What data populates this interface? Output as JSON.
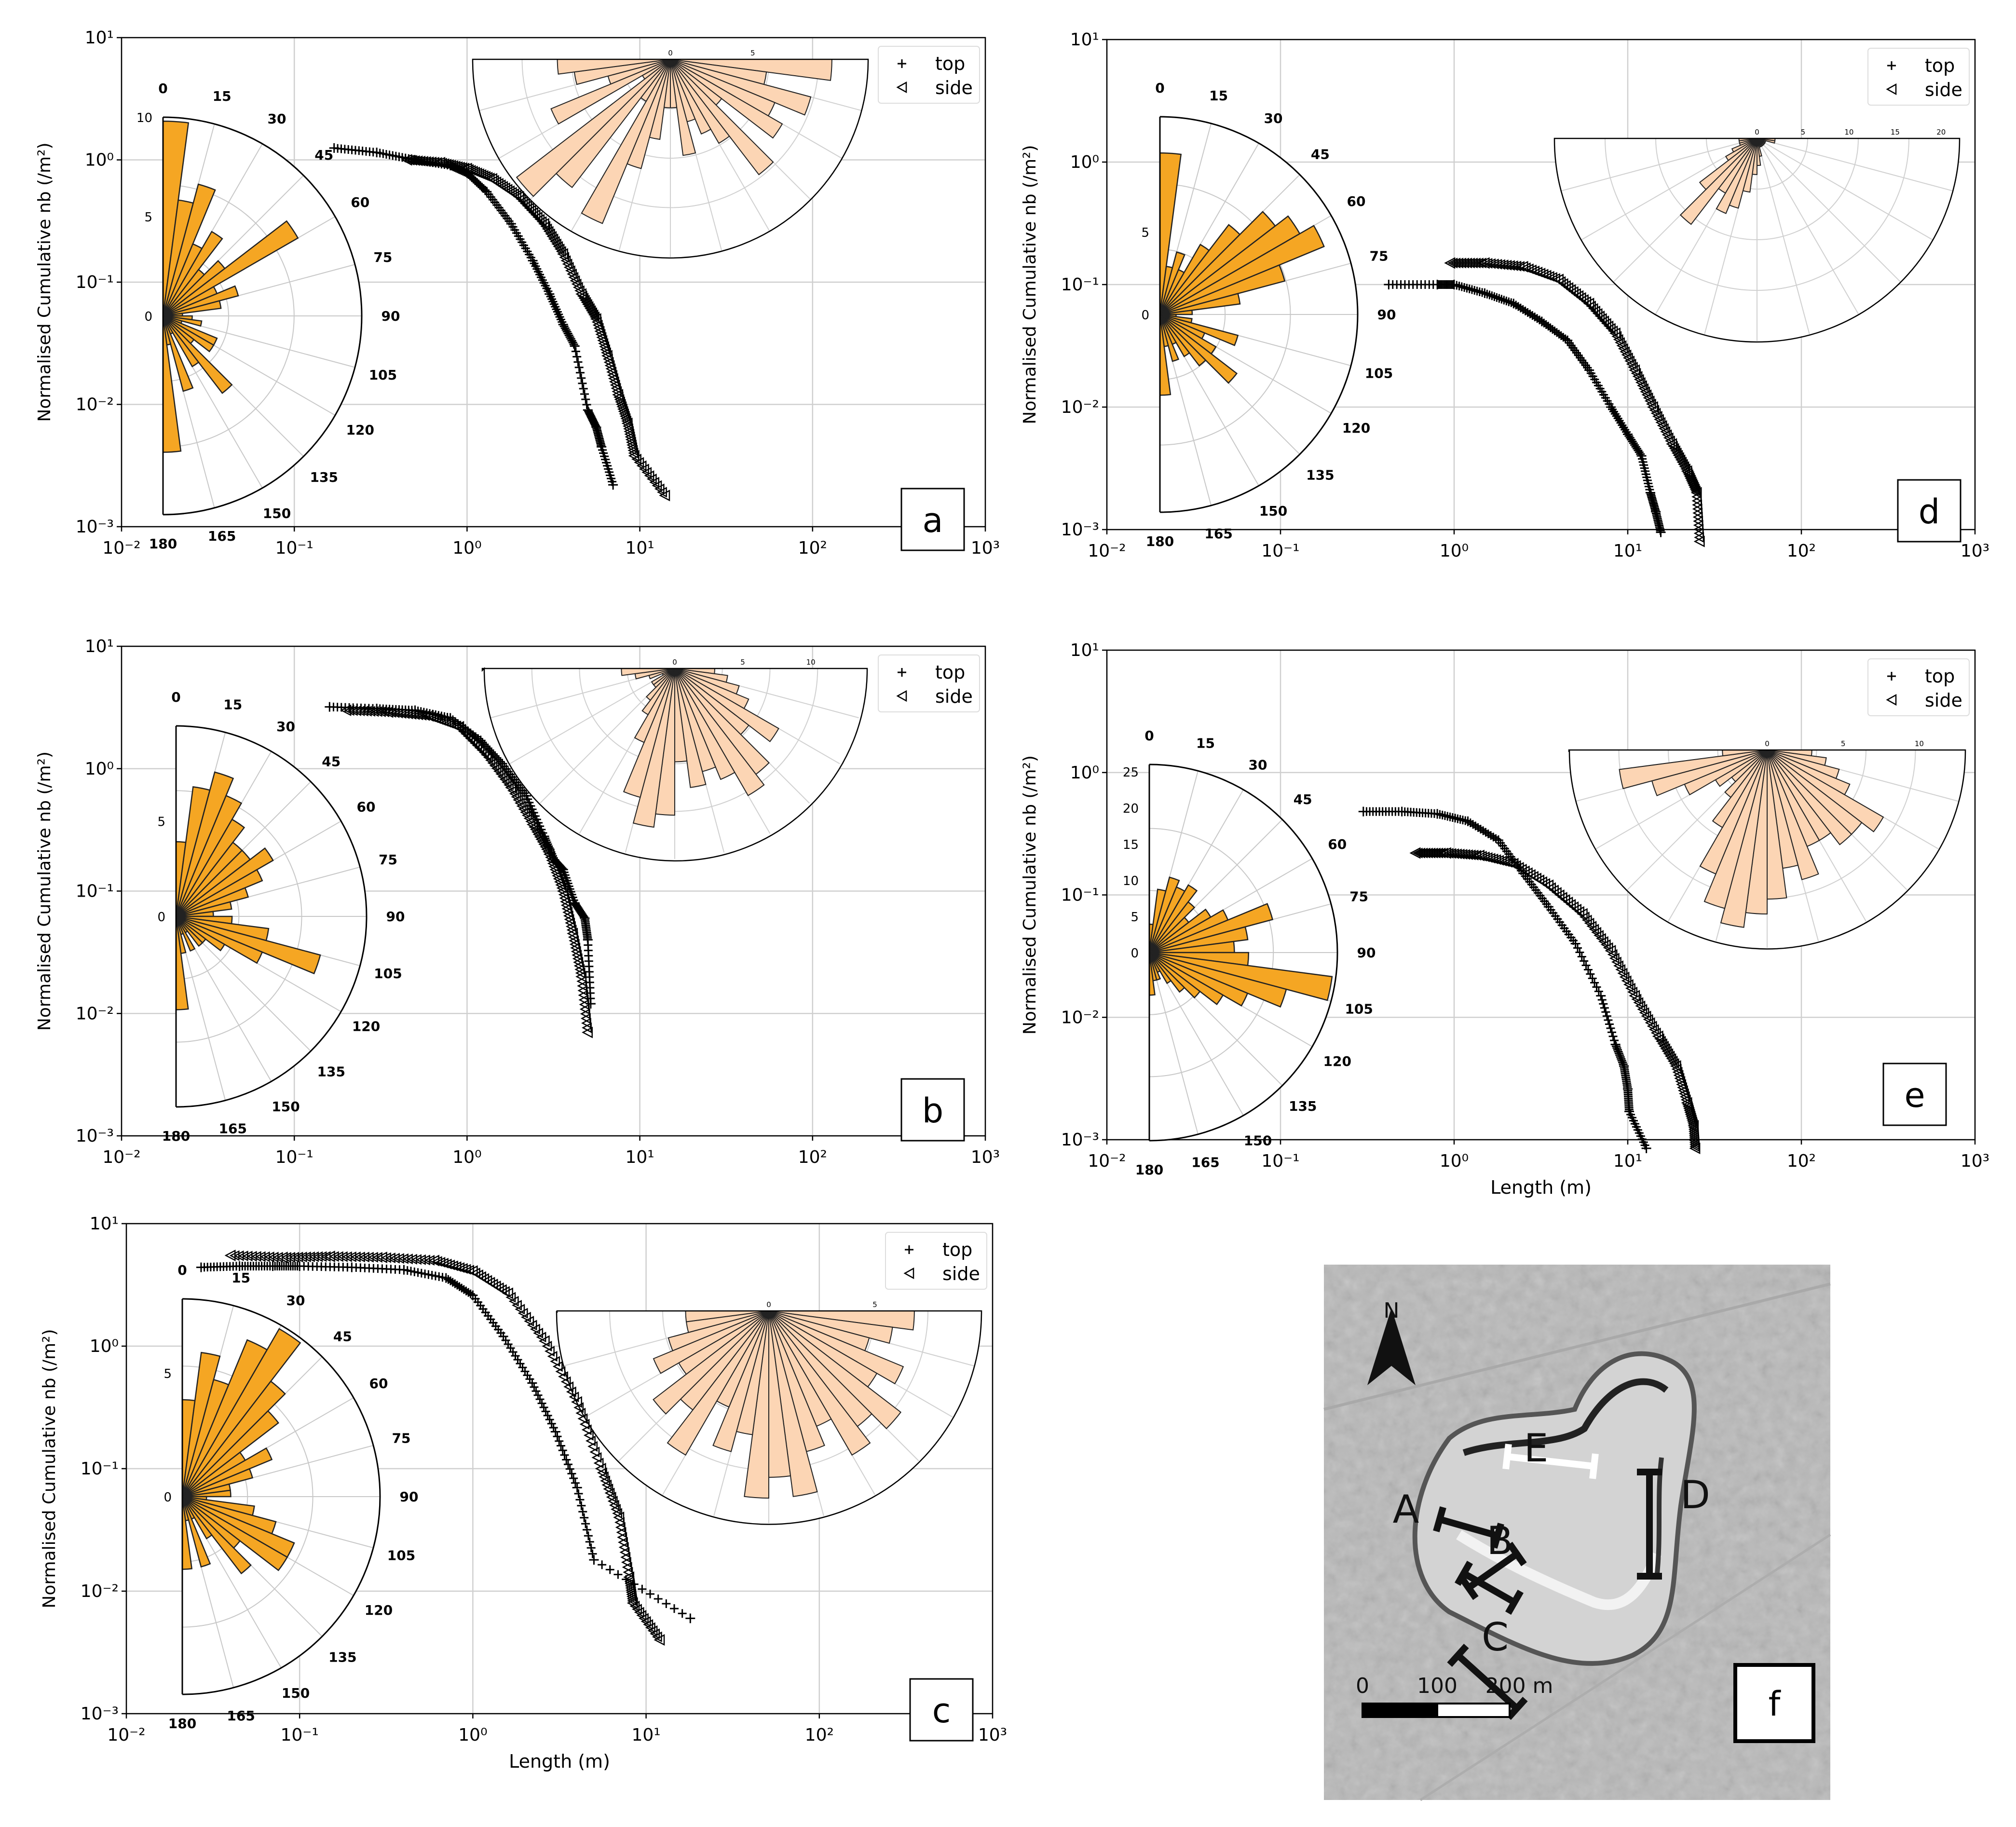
{
  "chart_data": [
    {
      "type": "scatter",
      "label": "a",
      "xlabel": "",
      "ylabel": "Normalised Cumulative nb (/m²)",
      "xscale": "log",
      "yscale": "log",
      "xlim": [
        0.01,
        1000
      ],
      "ylim": [
        0.001,
        10
      ],
      "xticks": [
        "10⁻²",
        "10⁻¹",
        "10⁰",
        "10¹",
        "10²",
        "10³"
      ],
      "yticks": [
        "10⁻³",
        "10⁻²",
        "10⁻¹",
        "10⁰",
        "10¹"
      ],
      "grid": true,
      "legend": "top-right",
      "series": [
        {
          "name": "top",
          "marker": "+",
          "x": [
            0.17,
            0.3,
            0.5,
            0.8,
            1.0,
            1.3,
            1.8,
            2.4,
            3.0,
            3.6,
            4.2,
            5.0,
            5.6,
            6.0,
            7.0
          ],
          "y": [
            1.25,
            1.15,
            1.0,
            0.9,
            0.78,
            0.55,
            0.3,
            0.15,
            0.08,
            0.045,
            0.03,
            0.009,
            0.0065,
            0.0045,
            0.0022
          ]
        },
        {
          "name": "side",
          "marker": "◁",
          "x": [
            0.45,
            0.7,
            1.0,
            1.4,
            2.0,
            2.8,
            3.6,
            4.6,
            5.6,
            6.5,
            7.5,
            8.5,
            9.3,
            14.0
          ],
          "y": [
            1.0,
            0.95,
            0.85,
            0.7,
            0.5,
            0.3,
            0.17,
            0.08,
            0.05,
            0.025,
            0.012,
            0.007,
            0.0038,
            0.0018
          ]
        }
      ],
      "inset_rose_left": {
        "angles": [
          "0",
          "15",
          "30",
          "45",
          "60",
          "75",
          "90",
          "105",
          "120",
          "135",
          "150",
          "165",
          "180"
        ],
        "radial_ticks": [
          "0",
          "5",
          "10"
        ],
        "rmax": 10,
        "bins_deg": [
          0,
          7.5,
          15,
          22.5,
          30,
          37.5,
          45,
          52.5,
          60,
          67.5,
          75,
          82.5,
          90,
          97.5,
          105,
          112.5,
          120,
          127.5,
          135,
          142.5,
          150,
          157.5,
          165,
          172.5
        ],
        "counts": [
          10,
          6,
          7,
          4,
          5,
          3,
          4,
          8,
          3,
          4,
          3,
          1,
          1.5,
          2,
          1,
          3,
          3,
          2,
          5,
          3,
          1,
          4,
          1.5,
          7
        ]
      },
      "inset_rose_top": {
        "radial_ticks": [
          "0",
          "5"
        ],
        "rmax": 12,
        "counts": [
          10,
          6,
          9,
          7,
          8,
          4,
          9,
          6,
          5,
          4,
          6,
          3,
          3,
          5,
          7,
          11,
          3,
          10,
          12,
          2,
          8,
          4,
          6,
          7
        ]
      }
    },
    {
      "type": "scatter",
      "label": "b",
      "xlabel": "",
      "ylabel": "Normalised Cumulative nb (/m²)",
      "xscale": "log",
      "yscale": "log",
      "xlim": [
        0.01,
        1000
      ],
      "ylim": [
        0.001,
        10
      ],
      "xticks": [
        "10⁻²",
        "10⁻¹",
        "10⁰",
        "10¹",
        "10²",
        "10³"
      ],
      "yticks": [
        "10⁻³",
        "10⁻²",
        "10⁻¹",
        "10⁰",
        "10¹"
      ],
      "grid": true,
      "legend": "top-right",
      "series": [
        {
          "name": "top",
          "marker": "+",
          "x": [
            0.16,
            0.3,
            0.5,
            0.8,
            1.2,
            1.6,
            2.2,
            2.8,
            3.2,
            3.6,
            4.2,
            4.8,
            5.0,
            5.2
          ],
          "y": [
            3.2,
            3.1,
            3.0,
            2.6,
            1.7,
            1.1,
            0.6,
            0.28,
            0.18,
            0.15,
            0.08,
            0.06,
            0.04,
            0.012
          ]
        },
        {
          "name": "side",
          "marker": "◁",
          "x": [
            0.2,
            0.35,
            0.6,
            0.9,
            1.3,
            1.8,
            2.4,
            3.0,
            3.6,
            4.1,
            4.6,
            5.0
          ],
          "y": [
            3.0,
            2.9,
            2.7,
            2.2,
            1.3,
            0.7,
            0.35,
            0.2,
            0.1,
            0.045,
            0.02,
            0.007
          ]
        }
      ],
      "inset_rose_left": {
        "angles": [
          "0",
          "15",
          "30",
          "45",
          "60",
          "75",
          "90",
          "105",
          "120",
          "135",
          "150",
          "165",
          "180"
        ],
        "radial_ticks": [
          "0",
          "5"
        ],
        "rmax": 10,
        "counts": [
          4,
          7,
          8,
          7,
          6,
          5,
          5,
          6,
          5,
          4,
          3,
          2,
          3,
          5,
          8,
          5,
          3,
          2,
          2,
          1,
          2,
          1,
          2,
          5
        ]
      },
      "inset_rose_top": {
        "radial_ticks": [
          "0",
          "5",
          "10"
        ],
        "rmax": 14,
        "counts": [
          3,
          4,
          5,
          6,
          9,
          7,
          10,
          11,
          9,
          8,
          9,
          7,
          11,
          12,
          10,
          6,
          4,
          3,
          2,
          2,
          1,
          2,
          3,
          4
        ]
      }
    },
    {
      "type": "scatter",
      "label": "c",
      "xlabel": "Length (m)",
      "ylabel": "Normalised Cumulative nb (/m²)",
      "xscale": "log",
      "yscale": "log",
      "xlim": [
        0.01,
        1000
      ],
      "ylim": [
        0.001,
        10
      ],
      "xticks": [
        "10⁻²",
        "10⁻¹",
        "10⁰",
        "10¹",
        "10²",
        "10³"
      ],
      "yticks": [
        "10⁻³",
        "10⁻²",
        "10⁻¹",
        "10⁰",
        "10¹"
      ],
      "grid": true,
      "legend": "top-right",
      "series": [
        {
          "name": "top",
          "marker": "+",
          "x": [
            0.027,
            0.045,
            0.07,
            0.1,
            0.2,
            0.4,
            0.7,
            1.0,
            1.5,
            2.2,
            3.0,
            4.0,
            5.0,
            18.0
          ],
          "y": [
            4.4,
            4.5,
            4.5,
            4.5,
            4.4,
            4.2,
            3.6,
            2.6,
            1.2,
            0.5,
            0.2,
            0.07,
            0.018,
            0.006
          ]
        },
        {
          "name": "side",
          "marker": "◁",
          "x": [
            0.04,
            0.08,
            0.15,
            0.3,
            0.6,
            1.0,
            1.6,
            2.6,
            4.0,
            5.5,
            7.0,
            8.0,
            8.4,
            12.0
          ],
          "y": [
            5.5,
            5.3,
            5.4,
            5.3,
            5.0,
            4.1,
            2.7,
            1.1,
            0.35,
            0.1,
            0.04,
            0.013,
            0.008,
            0.004
          ]
        }
      ],
      "inset_rose_left": {
        "angles": [
          "0",
          "15",
          "30",
          "45",
          "60",
          "75",
          "90",
          "105",
          "120",
          "135",
          "150",
          "165",
          "180"
        ],
        "radial_ticks": [
          "0",
          "5"
        ],
        "rmax": 8,
        "counts": [
          4,
          6,
          5,
          7,
          8,
          6,
          5,
          3,
          4,
          3,
          2,
          2,
          1,
          3,
          4,
          5,
          5,
          3,
          4,
          2,
          1,
          3,
          1,
          3
        ]
      },
      "inset_rose_top": {
        "radial_ticks": [
          "0",
          "5"
        ],
        "rmax": 10,
        "counts": [
          7,
          6,
          5,
          7,
          6,
          8,
          7,
          8,
          6,
          7,
          9,
          8,
          9,
          6,
          7,
          5,
          8,
          6,
          7,
          5,
          6,
          5,
          4,
          4
        ]
      }
    },
    {
      "type": "scatter",
      "label": "d",
      "xlabel": "",
      "ylabel": "Normalised Cumulative nb (/m²)",
      "xscale": "log",
      "yscale": "log",
      "xlim": [
        0.01,
        1000
      ],
      "ylim": [
        0.001,
        10
      ],
      "xticks": [
        "10⁻²",
        "10⁻¹",
        "10⁰",
        "10¹",
        "10²",
        "10³"
      ],
      "yticks": [
        "10⁻³",
        "10⁻²",
        "10⁻¹",
        "10⁰",
        "10¹"
      ],
      "grid": true,
      "legend": "top-right",
      "series": [
        {
          "name": "top",
          "marker": "+",
          "x": [
            0.42,
            0.8,
            1.0,
            1.5,
            2.2,
            3.2,
            4.5,
            6.0,
            8.0,
            10.0,
            12.0,
            13.5,
            14.5,
            15.5
          ],
          "y": [
            0.1,
            0.1,
            0.1,
            0.085,
            0.07,
            0.05,
            0.035,
            0.02,
            0.01,
            0.006,
            0.004,
            0.002,
            0.0014,
            0.00095
          ]
        },
        {
          "name": "side",
          "marker": "◁",
          "x": [
            0.95,
            1.5,
            2.5,
            4.0,
            6.0,
            8.5,
            11.0,
            14.0,
            18.0,
            22.0,
            25.0,
            26.0
          ],
          "y": [
            0.15,
            0.15,
            0.14,
            0.11,
            0.07,
            0.04,
            0.02,
            0.01,
            0.005,
            0.003,
            0.002,
            0.0008
          ]
        }
      ],
      "inset_rose_left": {
        "angles": [
          "0",
          "15",
          "30",
          "45",
          "60",
          "75",
          "90",
          "105",
          "120",
          "135",
          "150",
          "165",
          "180"
        ],
        "radial_ticks": [
          "0",
          "5"
        ],
        "rmax": 12,
        "counts": [
          10,
          3,
          4,
          3,
          5,
          7,
          9,
          10,
          11,
          8,
          5,
          2,
          1,
          2,
          5,
          3,
          4,
          6,
          4,
          3,
          2,
          3,
          2,
          5
        ]
      },
      "inset_rose_top": {
        "radial_ticks": [
          "0",
          "5",
          "10",
          "15",
          "20"
        ],
        "rmax": 22,
        "counts": [
          2,
          2,
          1,
          1,
          1,
          1,
          1,
          1,
          1,
          1,
          2,
          3,
          4,
          6,
          8,
          9,
          7,
          12,
          8,
          4,
          3,
          2,
          2,
          2
        ]
      }
    },
    {
      "type": "scatter",
      "label": "e",
      "xlabel": "Length (m)",
      "ylabel": "Normalised Cumulative nb (/m²)",
      "xscale": "log",
      "yscale": "log",
      "xlim": [
        0.01,
        1000
      ],
      "ylim": [
        0.001,
        10
      ],
      "xticks": [
        "10⁻²",
        "10⁻¹",
        "10⁰",
        "10¹",
        "10²",
        "10³"
      ],
      "yticks": [
        "10⁻³",
        "10⁻²",
        "10⁻¹",
        "10⁰",
        "10¹"
      ],
      "grid": true,
      "legend": "top-right",
      "series": [
        {
          "name": "top",
          "marker": "+",
          "x": [
            0.3,
            0.5,
            0.8,
            1.2,
            1.8,
            2.5,
            3.5,
            5.0,
            7.0,
            8.5,
            9.5,
            10.0,
            10.2,
            12.8
          ],
          "y": [
            0.48,
            0.48,
            0.46,
            0.4,
            0.28,
            0.15,
            0.08,
            0.04,
            0.015,
            0.006,
            0.004,
            0.0026,
            0.0017,
            0.00085
          ]
        },
        {
          "name": "side",
          "marker": "◁",
          "x": [
            0.6,
            0.9,
            1.4,
            2.2,
            3.5,
            5.5,
            8.0,
            11.0,
            15.0,
            19.0,
            22.0,
            24.0,
            24.5
          ],
          "y": [
            0.22,
            0.22,
            0.21,
            0.18,
            0.12,
            0.07,
            0.035,
            0.015,
            0.007,
            0.004,
            0.002,
            0.0013,
            0.00085
          ]
        }
      ],
      "inset_rose_left": {
        "angles": [
          "0",
          "15",
          "30",
          "45",
          "60",
          "75",
          "90",
          "105",
          "120",
          "135",
          "150",
          "165",
          "180"
        ],
        "radial_ticks": [
          "0",
          "5",
          "10",
          "15",
          "20",
          "25"
        ],
        "rmax": 26,
        "counts": [
          4,
          9,
          11,
          10,
          11,
          9,
          7,
          10,
          12,
          18,
          14,
          12,
          14,
          26,
          20,
          15,
          12,
          9,
          7,
          5,
          3,
          4,
          4,
          6
        ]
      },
      "inset_rose_top": {
        "radial_ticks": [
          "0",
          "5",
          "10"
        ],
        "rmax": 13,
        "counts": [
          3,
          4,
          5,
          6,
          9,
          8,
          8,
          7,
          7,
          9,
          8,
          10,
          11,
          12,
          11,
          9,
          6,
          4,
          3,
          4,
          6,
          8,
          10,
          3
        ]
      }
    }
  ],
  "panel_labels": [
    "a",
    "b",
    "c",
    "d",
    "e",
    "f"
  ],
  "map": {
    "north": "N",
    "sections": [
      "E",
      "A",
      "B",
      "C",
      "D"
    ],
    "scale_labels": [
      "0",
      "100",
      "200 m"
    ],
    "label": "f"
  }
}
